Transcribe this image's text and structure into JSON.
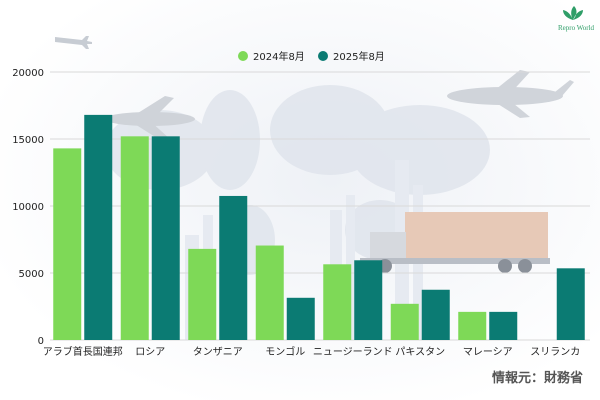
{
  "brand": {
    "name": "Repro World",
    "icon": "lotus-icon",
    "color": "#2f9e68"
  },
  "source": "情報元：財務省",
  "colors": {
    "series_2024": "#7ed957",
    "series_2025": "#0b7b73",
    "grid": "#d9d9d9",
    "text": "#222222",
    "source": "#555555"
  },
  "chart_data": {
    "type": "bar",
    "categories": [
      "アラブ首長国連邦",
      "ロシア",
      "タンザニア",
      "モンゴル",
      "ニュージーランド",
      "パキスタン",
      "マレーシア",
      "スリランカ"
    ],
    "series": [
      {
        "name": "2024年8月",
        "values": [
          14300,
          15200,
          6800,
          7050,
          5650,
          2700,
          2100,
          0
        ]
      },
      {
        "name": "2025年8月",
        "values": [
          16800,
          15200,
          10750,
          3150,
          5950,
          3750,
          2100,
          5350
        ]
      }
    ],
    "yticks": [
      "0",
      "5000",
      "10000",
      "15000",
      "20000"
    ],
    "ylim": [
      0,
      20000
    ],
    "grid": true,
    "legend": "top-center",
    "title": "",
    "xlabel": "",
    "ylabel": ""
  }
}
